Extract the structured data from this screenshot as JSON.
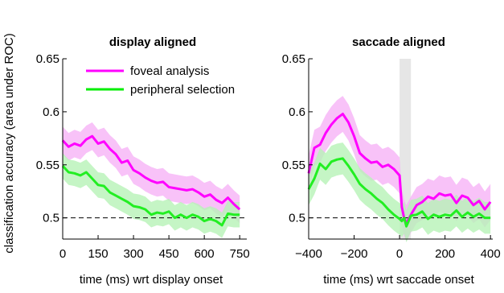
{
  "ylabel": "classification accuracy (area under ROC)",
  "legend": [
    {
      "name": "foveal analysis",
      "color": "#ff00ff"
    },
    {
      "name": "peripheral selection",
      "color": "#00ee00"
    }
  ],
  "colors": {
    "foveal": "#ff00ff",
    "foveal_band": "#f6b3f6",
    "peripheral": "#22ee22",
    "peripheral_band": "#b6f2b6",
    "shade": "#e6e6e6",
    "chance": "#000000"
  },
  "chart_data": [
    {
      "type": "line",
      "title": "display aligned",
      "xlabel": "time (ms) wrt display onset",
      "ylabel": "classification accuracy (area under ROC)",
      "xlim": [
        0,
        780
      ],
      "ylim": [
        0.48,
        0.65
      ],
      "xticks": [
        0,
        150,
        300,
        450,
        600,
        750
      ],
      "xticklabels": [
        "0",
        "150",
        "300",
        "450",
        "600",
        "750"
      ],
      "yticks": [
        0.5,
        0.55,
        0.6,
        0.65
      ],
      "yticklabels": [
        "0.5",
        "0.55",
        "0.6",
        "0.65"
      ],
      "chance_level": 0.5,
      "shaded_region": null,
      "x": [
        0,
        25,
        50,
        75,
        100,
        125,
        150,
        175,
        200,
        225,
        250,
        275,
        300,
        325,
        350,
        375,
        400,
        425,
        450,
        475,
        500,
        525,
        550,
        575,
        600,
        625,
        650,
        675,
        700,
        725,
        750
      ],
      "series": [
        {
          "name": "foveal analysis",
          "values": [
            0.573,
            0.567,
            0.57,
            0.568,
            0.574,
            0.577,
            0.57,
            0.572,
            0.565,
            0.56,
            0.552,
            0.554,
            0.545,
            0.542,
            0.538,
            0.535,
            0.533,
            0.534,
            0.529,
            0.528,
            0.527,
            0.526,
            0.527,
            0.524,
            0.52,
            0.522,
            0.517,
            0.514,
            0.519,
            0.513,
            0.508
          ],
          "band": 0.013
        },
        {
          "name": "peripheral selection",
          "values": [
            0.549,
            0.543,
            0.542,
            0.54,
            0.543,
            0.537,
            0.531,
            0.53,
            0.524,
            0.521,
            0.518,
            0.515,
            0.511,
            0.51,
            0.508,
            0.503,
            0.505,
            0.504,
            0.506,
            0.5,
            0.503,
            0.5,
            0.503,
            0.501,
            0.497,
            0.499,
            0.497,
            0.493,
            0.504,
            0.503,
            0.503
          ],
          "band": 0.012
        }
      ]
    },
    {
      "type": "line",
      "title": "saccade aligned",
      "xlabel": "time (ms) wrt saccade onset",
      "ylabel": "",
      "xlim": [
        -400,
        410
      ],
      "ylim": [
        0.48,
        0.65
      ],
      "xticks": [
        -400,
        -200,
        0,
        200,
        400
      ],
      "xticklabels": [
        "−400",
        "−200",
        "0",
        "200",
        "400"
      ],
      "yticks": [
        0.5,
        0.55,
        0.6,
        0.65
      ],
      "yticklabels": [
        "0.5",
        "0.55",
        "0.6",
        "0.65"
      ],
      "chance_level": 0.5,
      "shaded_region": [
        0,
        50
      ],
      "x": [
        -400,
        -375,
        -350,
        -325,
        -300,
        -275,
        -250,
        -225,
        -200,
        -175,
        -150,
        -125,
        -100,
        -75,
        -50,
        -25,
        0,
        10,
        20,
        30,
        50,
        75,
        100,
        125,
        150,
        175,
        200,
        225,
        250,
        275,
        300,
        325,
        350,
        375,
        400
      ],
      "series": [
        {
          "name": "foveal analysis",
          "values": [
            0.542,
            0.566,
            0.569,
            0.58,
            0.588,
            0.594,
            0.598,
            0.59,
            0.577,
            0.561,
            0.556,
            0.552,
            0.553,
            0.548,
            0.55,
            0.546,
            0.54,
            0.51,
            0.5,
            0.495,
            0.503,
            0.512,
            0.515,
            0.52,
            0.518,
            0.523,
            0.521,
            0.522,
            0.514,
            0.521,
            0.519,
            0.512,
            0.516,
            0.508,
            0.515
          ],
          "band": 0.017
        },
        {
          "name": "peripheral selection",
          "values": [
            0.527,
            0.537,
            0.551,
            0.546,
            0.553,
            0.555,
            0.556,
            0.549,
            0.541,
            0.532,
            0.527,
            0.523,
            0.518,
            0.514,
            0.508,
            0.503,
            0.499,
            0.497,
            0.5,
            0.492,
            0.502,
            0.503,
            0.506,
            0.499,
            0.503,
            0.501,
            0.503,
            0.502,
            0.507,
            0.501,
            0.505,
            0.501,
            0.504,
            0.5,
            0.5
          ],
          "band": 0.015
        }
      ]
    }
  ]
}
